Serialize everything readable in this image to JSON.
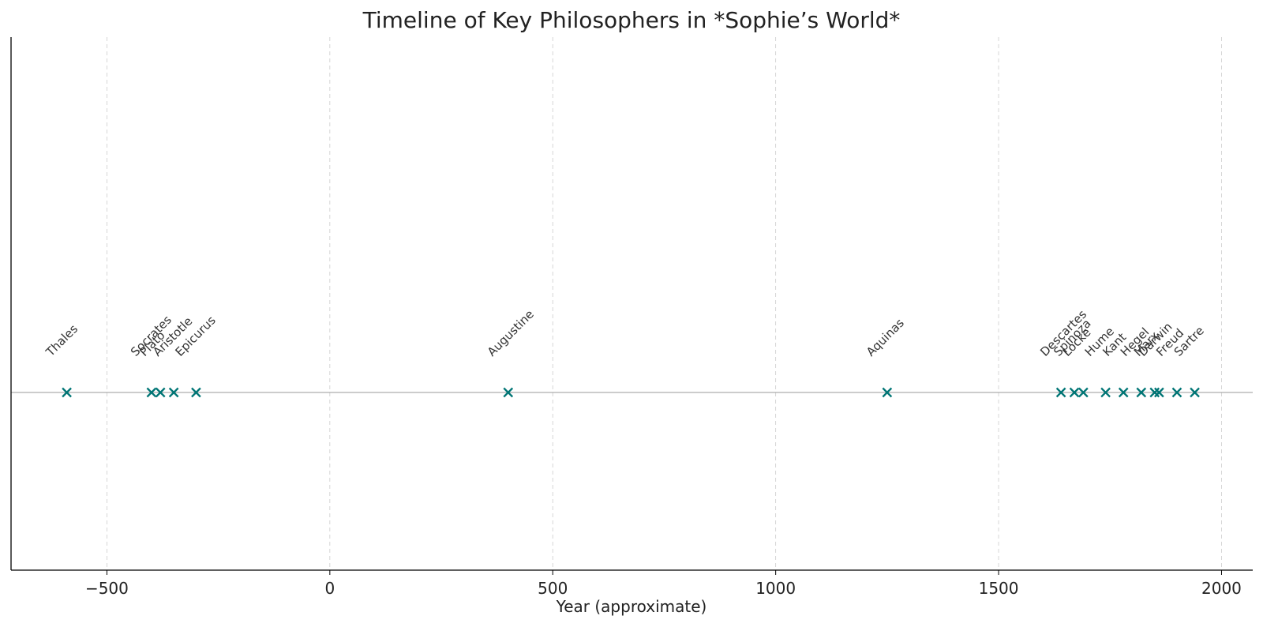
{
  "chart_data": {
    "type": "scatter",
    "title": "Timeline of Key Philosophers in *Sophie’s World*",
    "xlabel": "Year (approximate)",
    "ylabel": "",
    "xlim": [
      -715,
      2070
    ],
    "xticks": [
      -500,
      0,
      500,
      1000,
      1500,
      2000
    ],
    "tick_labels": [
      "−500",
      "0",
      "500",
      "1000",
      "1500",
      "2000"
    ],
    "grid": "vertical dashed",
    "marker": "x",
    "marker_color": "#007575",
    "baseline_color": "#999999",
    "points": [
      {
        "name": "Thales",
        "year": -590
      },
      {
        "name": "Socrates",
        "year": -400
      },
      {
        "name": "Plato",
        "year": -380
      },
      {
        "name": "Aristotle",
        "year": -350
      },
      {
        "name": "Epicurus",
        "year": -300
      },
      {
        "name": "Augustine",
        "year": 400
      },
      {
        "name": "Aquinas",
        "year": 1250
      },
      {
        "name": "Descartes",
        "year": 1640
      },
      {
        "name": "Spinoza",
        "year": 1670
      },
      {
        "name": "Locke",
        "year": 1690
      },
      {
        "name": "Hume",
        "year": 1740
      },
      {
        "name": "Kant",
        "year": 1780
      },
      {
        "name": "Hegel",
        "year": 1820
      },
      {
        "name": "Marx",
        "year": 1850
      },
      {
        "name": "Darwin",
        "year": 1860
      },
      {
        "name": "Freud",
        "year": 1900
      },
      {
        "name": "Sartre",
        "year": 1940
      }
    ]
  }
}
